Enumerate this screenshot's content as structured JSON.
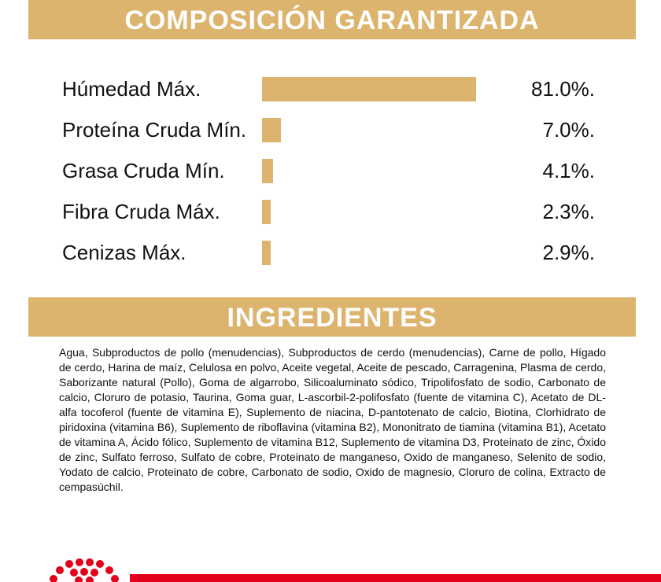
{
  "composition": {
    "title": "COMPOSICIÓN GARANTIZADA",
    "items": [
      {
        "label": "Húmedad Máx.",
        "value": 81.0,
        "value_label": "81.0%."
      },
      {
        "label": "Proteína Cruda Mín.",
        "value": 7.0,
        "value_label": "7.0%."
      },
      {
        "label": "Grasa Cruda Mín.",
        "value": 4.1,
        "value_label": "4.1%."
      },
      {
        "label": "Fibra Cruda Máx.",
        "value": 2.3,
        "value_label": "2.3%."
      },
      {
        "label": "Cenizas Máx.",
        "value": 2.9,
        "value_label": "2.9%."
      }
    ]
  },
  "ingredients": {
    "title": "INGREDIENTES",
    "text": "Agua, Subproductos de pollo (menudencias), Subproductos de cerdo (menudencias), Carne de pollo, Hígado de cerdo, Harina de maíz, Celulosa en polvo, Aceite vegetal, Aceite de pescado, Carragenina, Plasma de cerdo, Saborizante natural (Pollo), Goma de algarrobo, Silicoaluminato sódico, Tripolifosfato de sodio, Carbonato de calcio, Cloruro de potasio, Taurina, Goma guar, L-ascorbil-2-polifosfato (fuente de vitamina C), Acetato de DL-alfa tocoferol (fuente de vitamina E), Suplemento de niacina, D-pantotenato de calcio, Biotina, Clorhidrato de piridoxina (vitamina B6), Suplemento de riboflavina (vitamina B2), Mononitrato de tiamina (vitamina B1), Acetato de vitamina A, Ácido fólico, Suplemento de vitamina B12, Suplemento de vitamina D3, Proteinato de zinc, Óxido de zinc, Sulfato ferroso, Sulfato de cobre, Proteinato de manganeso, Oxido de manganeso, Selenito de sodio, Yodato de calcio, Proteinato de cobre, Carbonato de sodio, Oxido de magnesio, Cloruro de colina, Extracto de cempasúchil."
  }
}
